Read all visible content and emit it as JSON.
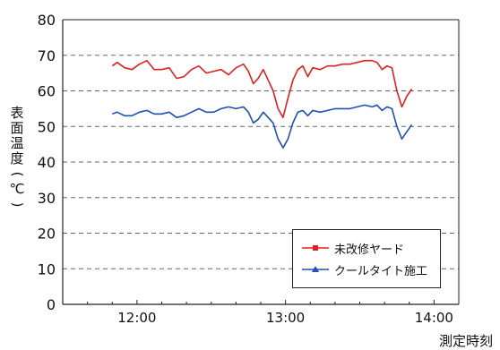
{
  "chart_data": {
    "type": "line",
    "title": "",
    "ylabel": "表面温度(℃)",
    "xlabel": "測定時刻",
    "ylim": [
      0,
      80
    ],
    "yticks": [
      0,
      10,
      20,
      30,
      40,
      50,
      60,
      70,
      80
    ],
    "xlim": [
      690,
      850
    ],
    "xticks": [
      {
        "value": 720,
        "label": "12:00"
      },
      {
        "value": 780,
        "label": "13:00"
      },
      {
        "value": 840,
        "label": "14:00"
      }
    ],
    "grid": "horizontal dashed",
    "legend_position": "bottom-right",
    "series": [
      {
        "name": "未改修ヤード",
        "color": "#e02020",
        "marker": "square",
        "points": [
          [
            710,
            67
          ],
          [
            712,
            68
          ],
          [
            715,
            66.5
          ],
          [
            718,
            66
          ],
          [
            721,
            67.5
          ],
          [
            724,
            68.5
          ],
          [
            727,
            66
          ],
          [
            730,
            66
          ],
          [
            733,
            66.5
          ],
          [
            736,
            63.5
          ],
          [
            739,
            64
          ],
          [
            742,
            66
          ],
          [
            745,
            67
          ],
          [
            748,
            65
          ],
          [
            751,
            65.5
          ],
          [
            754,
            66
          ],
          [
            757,
            64.5
          ],
          [
            760,
            66.5
          ],
          [
            763,
            67.5
          ],
          [
            765,
            65.5
          ],
          [
            767,
            62
          ],
          [
            769,
            63.5
          ],
          [
            771,
            66
          ],
          [
            773,
            63
          ],
          [
            775,
            60
          ],
          [
            777,
            55
          ],
          [
            779,
            52.5
          ],
          [
            781,
            58
          ],
          [
            783,
            63
          ],
          [
            785,
            66
          ],
          [
            787,
            67
          ],
          [
            789,
            64
          ],
          [
            791,
            66.5
          ],
          [
            794,
            66
          ],
          [
            797,
            67
          ],
          [
            800,
            67
          ],
          [
            803,
            67.5
          ],
          [
            806,
            67.5
          ],
          [
            809,
            68
          ],
          [
            812,
            68.5
          ],
          [
            815,
            68.5
          ],
          [
            817,
            68
          ],
          [
            819,
            66
          ],
          [
            821,
            67
          ],
          [
            823,
            66.5
          ],
          [
            825,
            60
          ],
          [
            827,
            55.5
          ],
          [
            829,
            58.5
          ],
          [
            831,
            60.5
          ]
        ]
      },
      {
        "name": "クールタイト施工",
        "color": "#1f4fb0",
        "marker": "triangle",
        "points": [
          [
            710,
            53.5
          ],
          [
            712,
            54
          ],
          [
            715,
            53
          ],
          [
            718,
            53
          ],
          [
            721,
            54
          ],
          [
            724,
            54.5
          ],
          [
            727,
            53.5
          ],
          [
            730,
            53.5
          ],
          [
            733,
            54
          ],
          [
            736,
            52.5
          ],
          [
            739,
            53
          ],
          [
            742,
            54
          ],
          [
            745,
            55
          ],
          [
            748,
            54
          ],
          [
            751,
            54
          ],
          [
            754,
            55
          ],
          [
            757,
            55.5
          ],
          [
            760,
            55
          ],
          [
            763,
            55.5
          ],
          [
            765,
            54
          ],
          [
            767,
            51
          ],
          [
            769,
            52
          ],
          [
            771,
            54
          ],
          [
            773,
            52.5
          ],
          [
            775,
            51
          ],
          [
            777,
            46.5
          ],
          [
            779,
            44
          ],
          [
            781,
            46.5
          ],
          [
            783,
            51
          ],
          [
            785,
            54
          ],
          [
            787,
            54.5
          ],
          [
            789,
            53
          ],
          [
            791,
            54.5
          ],
          [
            794,
            54
          ],
          [
            797,
            54.5
          ],
          [
            800,
            55
          ],
          [
            803,
            55
          ],
          [
            806,
            55
          ],
          [
            809,
            55.5
          ],
          [
            812,
            56
          ],
          [
            815,
            55.5
          ],
          [
            817,
            56
          ],
          [
            819,
            54.5
          ],
          [
            821,
            55.5
          ],
          [
            823,
            55
          ],
          [
            825,
            50
          ],
          [
            827,
            46.5
          ],
          [
            829,
            48.5
          ],
          [
            831,
            50.5
          ]
        ]
      }
    ]
  }
}
